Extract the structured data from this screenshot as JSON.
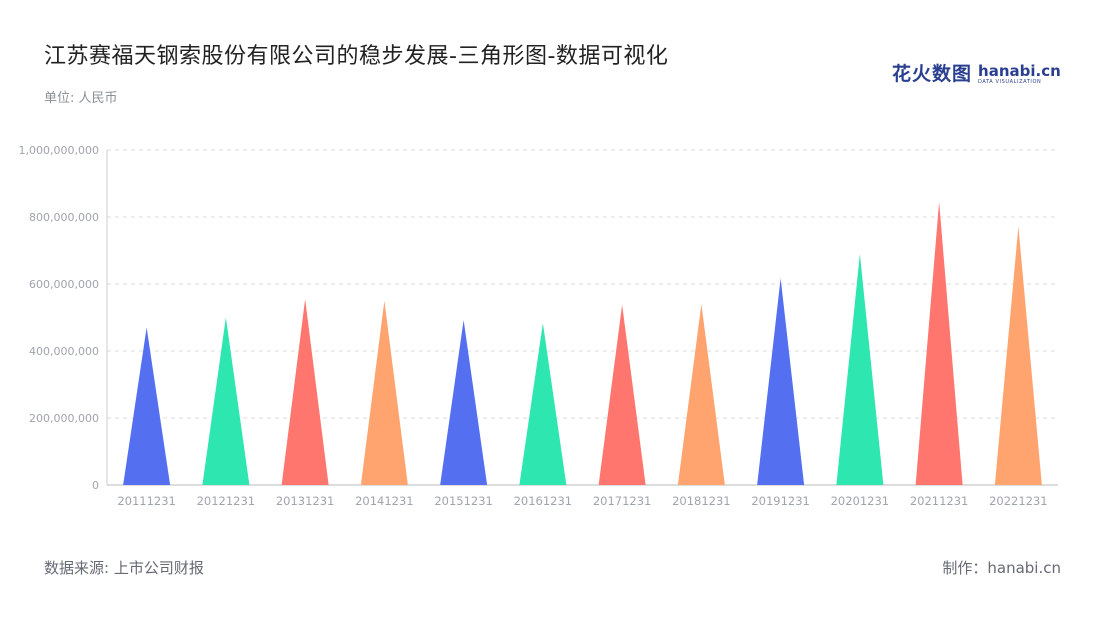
{
  "header": {
    "title": "江苏赛福天钢索股份有限公司的稳步发展-三角形图-数据可视化",
    "unit": "单位: 人民币"
  },
  "logo": {
    "cn": "花火数图",
    "en": "hanabi.cn",
    "en_sub": "DATA VISUALIZATION",
    "color": "#2a3f8f"
  },
  "footer": {
    "source": "数据来源: 上市公司财报",
    "credit": "制作：hanabi.cn"
  },
  "chart_data": {
    "type": "bar",
    "bar_shape": "triangle",
    "categories": [
      "20111231",
      "20121231",
      "20131231",
      "20141231",
      "20151231",
      "20161231",
      "20171231",
      "20181231",
      "20191231",
      "20201231",
      "20211231",
      "20221231"
    ],
    "values": [
      470000000,
      500000000,
      555000000,
      550000000,
      492000000,
      483000000,
      538000000,
      540000000,
      617000000,
      690000000,
      845000000,
      772000000
    ],
    "colors": [
      "#5470f0",
      "#2de6b0",
      "#ff766f",
      "#ffa46f",
      "#5470f0",
      "#2de6b0",
      "#ff766f",
      "#ffa46f",
      "#5470f0",
      "#2de6b0",
      "#ff766f",
      "#ffa46f"
    ],
    "ylim": [
      0,
      1000000000
    ],
    "yticks": [
      0,
      200000000,
      400000000,
      600000000,
      800000000,
      1000000000
    ],
    "ytick_labels": [
      "0",
      "200,000,000",
      "400,000,000",
      "600,000,000",
      "800,000,000",
      "1,000,000,000"
    ],
    "grid": true,
    "legend": "none"
  }
}
